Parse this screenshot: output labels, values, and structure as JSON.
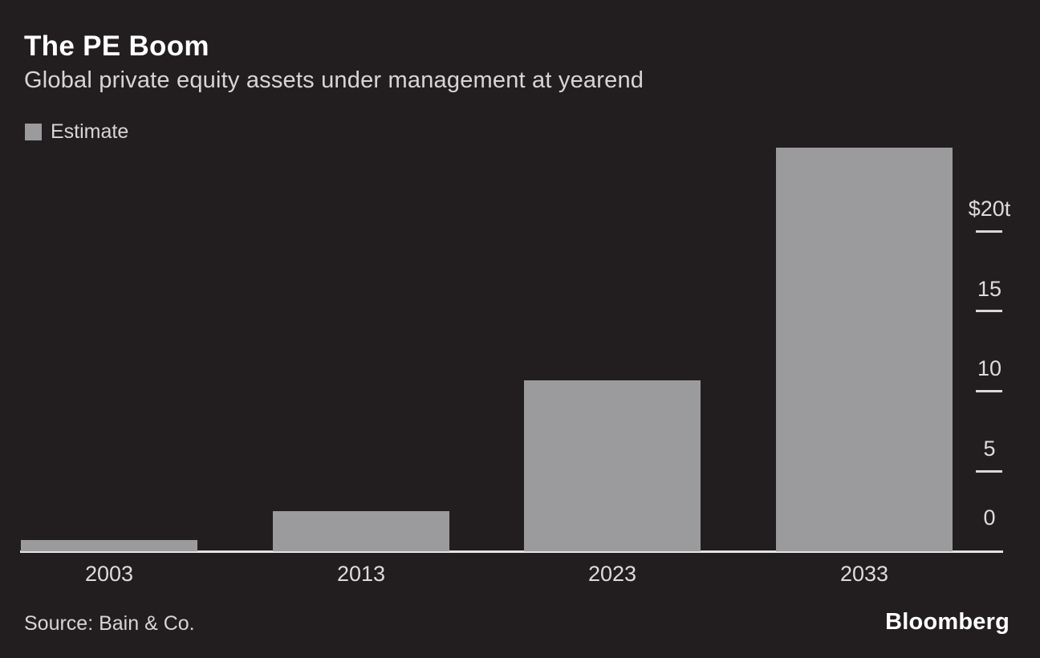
{
  "header": {
    "title": "The PE Boom",
    "subtitle": "Global private equity assets under management at yearend"
  },
  "legend": {
    "label": "Estimate",
    "swatch_color": "#9b9b9e"
  },
  "chart_data": {
    "type": "bar",
    "title": "The PE Boom",
    "subtitle": "Global private equity assets under management at yearend",
    "categories": [
      "2003",
      "2013",
      "2023",
      "2033"
    ],
    "values": [
      0.7,
      2.5,
      10.7,
      25.2
    ],
    "unit": "trillion USD",
    "estimate_categories": [
      "2033"
    ],
    "legend": [
      "Estimate"
    ],
    "xlabel": "",
    "ylabel": "",
    "ylim": [
      0,
      25.5
    ],
    "y_axis_side": "right",
    "grid": false,
    "y_ticks": [
      {
        "value": 0,
        "label": "0"
      },
      {
        "value": 5,
        "label": "5"
      },
      {
        "value": 10,
        "label": "10"
      },
      {
        "value": 15,
        "label": "15"
      },
      {
        "value": 20,
        "label": "$20t"
      }
    ]
  },
  "footer": {
    "source": "Source: Bain & Co.",
    "brand": "Bloomberg"
  },
  "colors": {
    "background": "#221e1f",
    "bar": "#9b9b9e",
    "title_text": "#ffffff",
    "secondary_text": "#d7d5d5",
    "axis_line": "#e3e3e3"
  }
}
